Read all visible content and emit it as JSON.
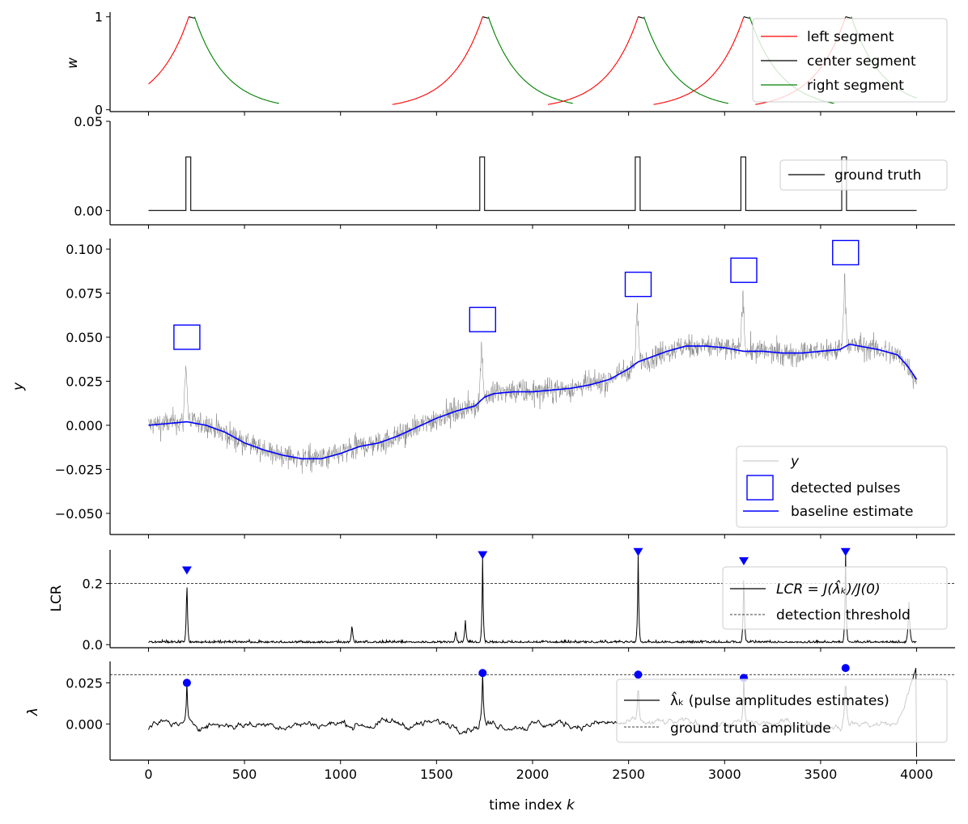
{
  "chart_data": [
    {
      "type": "line",
      "ylabel": "w",
      "yticks": [
        0,
        1
      ],
      "ylim": [
        -0.02,
        1.05
      ],
      "xlim": [
        -200,
        4200
      ],
      "legend": {
        "placement": "top-right",
        "entries": [
          "left segment",
          "center segment",
          "right segment"
        ]
      },
      "colors": {
        "left": "#ff0000",
        "center": "#000000",
        "right": "#008000"
      },
      "windows": [
        {
          "left_start": 0,
          "peak": 210,
          "right_end": 680
        },
        {
          "left_start": 1270,
          "peak": 1740,
          "right_end": 2210
        },
        {
          "left_start": 2080,
          "peak": 2550,
          "right_end": 3020
        },
        {
          "left_start": 2630,
          "peak": 3100,
          "right_end": 3570
        },
        {
          "left_start": 3160,
          "peak": 3630,
          "right_end": 4000
        }
      ],
      "center_width": 30
    },
    {
      "type": "line",
      "yticks": [
        "0.05",
        "0.00"
      ],
      "ylim": [
        -0.008,
        0.05
      ],
      "xlim": [
        -200,
        4200
      ],
      "legend": {
        "placement": "right",
        "entries": [
          "ground truth"
        ]
      },
      "pulses": [
        195,
        1725,
        2535,
        3085,
        3610
      ],
      "pulse_width": 25,
      "pulse_amplitude": 0.03,
      "x_range": [
        0,
        4000
      ]
    },
    {
      "type": "line",
      "ylabel": "y",
      "yticks": [
        "0.100",
        "0.075",
        "0.050",
        "0.025",
        "0.000",
        "−0.025",
        "−0.050"
      ],
      "ylim": [
        -0.062,
        0.106
      ],
      "xlim": [
        -200,
        4200
      ],
      "legend": {
        "placement": "bottom-right",
        "entries": [
          "y",
          "detected pulses",
          "baseline estimate"
        ]
      },
      "baseline": {
        "x": [
          0,
          100,
          200,
          300,
          400,
          500,
          600,
          700,
          800,
          900,
          1000,
          1100,
          1200,
          1300,
          1400,
          1500,
          1600,
          1700,
          1750,
          1800,
          1900,
          2000,
          2100,
          2200,
          2300,
          2400,
          2500,
          2550,
          2600,
          2700,
          2800,
          2900,
          3000,
          3050,
          3100,
          3200,
          3300,
          3400,
          3500,
          3600,
          3650,
          3700,
          3800,
          3900,
          3950,
          4000
        ],
        "y": [
          0.0,
          0.001,
          0.002,
          0.0,
          -0.004,
          -0.01,
          -0.014,
          -0.017,
          -0.019,
          -0.019,
          -0.016,
          -0.012,
          -0.01,
          -0.006,
          -0.001,
          0.004,
          0.008,
          0.011,
          0.016,
          0.018,
          0.019,
          0.019,
          0.02,
          0.021,
          0.023,
          0.026,
          0.032,
          0.036,
          0.038,
          0.042,
          0.045,
          0.045,
          0.044,
          0.043,
          0.042,
          0.042,
          0.041,
          0.041,
          0.042,
          0.043,
          0.046,
          0.045,
          0.043,
          0.04,
          0.034,
          0.026
        ]
      },
      "detected_pulses": [
        {
          "x": 200,
          "y": 0.05
        },
        {
          "x": 1740,
          "y": 0.06
        },
        {
          "x": 2550,
          "y": 0.08
        },
        {
          "x": 3100,
          "y": 0.088
        },
        {
          "x": 3630,
          "y": 0.098
        }
      ],
      "noise_amplitude": 0.01
    },
    {
      "type": "line",
      "ylabel": "LCR",
      "yticks": [
        "0.2",
        "0.0"
      ],
      "ylim": [
        -0.01,
        0.31
      ],
      "xlim": [
        -200,
        4200
      ],
      "threshold": 0.2,
      "legend": {
        "placement": "right",
        "entries": [
          "LCR = J(λ̂ₖ)/J(0)",
          "detection threshold"
        ]
      },
      "peaks": [
        {
          "x": 200,
          "y": 0.24
        },
        {
          "x": 1740,
          "y": 0.29
        },
        {
          "x": 2550,
          "y": 0.3
        },
        {
          "x": 3100,
          "y": 0.27
        },
        {
          "x": 3630,
          "y": 0.3
        }
      ],
      "bumps": [
        {
          "x": 1060,
          "y": 0.07
        },
        {
          "x": 1600,
          "y": 0.05
        },
        {
          "x": 1650,
          "y": 0.08
        },
        {
          "x": 3960,
          "y": 0.14
        }
      ]
    },
    {
      "type": "line",
      "ylabel": "λ",
      "yticks": [
        "0.025",
        "0.000"
      ],
      "ylim": [
        -0.022,
        0.038
      ],
      "xlim": [
        -200,
        4200
      ],
      "threshold": 0.03,
      "xlabel": "time index k",
      "xticks": [
        0,
        500,
        1000,
        1500,
        2000,
        2500,
        3000,
        3500,
        4000
      ],
      "legend": {
        "placement": "right",
        "entries": [
          "λ̂ₖ (pulse amplitudes estimates)",
          "ground truth amplitude"
        ]
      },
      "peaks": [
        {
          "x": 200,
          "y": 0.025
        },
        {
          "x": 1740,
          "y": 0.031
        },
        {
          "x": 2550,
          "y": 0.03
        },
        {
          "x": 3100,
          "y": 0.028
        },
        {
          "x": 3630,
          "y": 0.034
        }
      ]
    }
  ]
}
